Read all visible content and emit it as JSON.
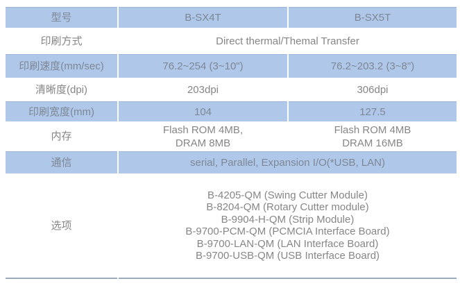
{
  "table": {
    "colors": {
      "row_fill": "#afc7e8",
      "row_border": "#9db5dd",
      "text_gray": "#868686",
      "bottom_line": "#9aa9bc"
    },
    "rows": {
      "model": {
        "label": "型号",
        "cells": [
          "B-SX4T",
          "B-SX5T"
        ]
      },
      "print_method": {
        "label": "印刷方式",
        "span": "Direct thermal/Themal Transfer"
      },
      "print_speed": {
        "label": "印刷速度(mm/sec)",
        "cells": [
          "76.2~254 (3~10\")",
          "76.2~203.2 (3~8\")"
        ]
      },
      "resolution": {
        "label": "清晰度(dpi)",
        "cells": [
          "203dpi",
          "306dpi"
        ]
      },
      "print_width": {
        "label": "印刷宽度(mm)",
        "cells": [
          "104",
          "127.5"
        ]
      },
      "memory": {
        "label": "内存",
        "cells": [
          "Flash ROM 4MB,\nDRAM 8MB",
          "Flash ROM 4MB\nDRAM 16MB"
        ]
      },
      "communication": {
        "label": "通信",
        "span": "serial, Parallel, Expansion I/O(*USB, LAN)"
      },
      "options": {
        "label": "选项",
        "span": "B-4205-QM (Swing Cutter Module)\nB-8204-QM (Rotary Cutter module)\nB-9904-H-QM (Strip Module)\nB-9700-PCM-QM (PCMCIA Interface Board)\nB-9700-LAN-QM (LAN Interface Board)\nB-9700-USB-QM (USB Interface Board)"
      }
    }
  }
}
